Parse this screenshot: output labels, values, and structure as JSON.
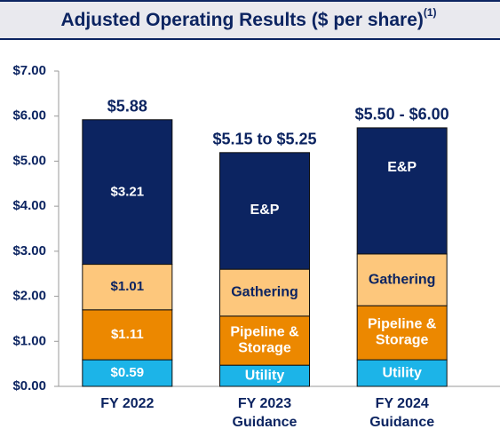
{
  "chart_data": {
    "type": "stacked-bar",
    "title": "Adjusted Operating Results ($ per share)",
    "title_note": "(1)",
    "categories": [
      [
        "FY 2022"
      ],
      [
        "FY 2023",
        "Guidance"
      ],
      [
        "FY 2024",
        "Guidance"
      ]
    ],
    "series": [
      {
        "name": "Utility",
        "color": "#1cb4e8",
        "values": [
          0.59,
          0.47,
          0.59
        ],
        "value_labels": [
          "$0.59",
          null,
          null
        ]
      },
      {
        "name": "Pipeline & Storage",
        "color": "#ec8800",
        "values": [
          1.11,
          1.09,
          1.2
        ],
        "value_labels": [
          "$1.11",
          null,
          null
        ]
      },
      {
        "name": "Gathering",
        "color": "#fdc77c",
        "values": [
          1.01,
          1.04,
          1.15
        ],
        "value_labels": [
          "$1.01",
          null,
          null
        ]
      },
      {
        "name": "E&P",
        "color": "#0c2461",
        "values": [
          3.21,
          2.59,
          2.8
        ],
        "value_labels": [
          "$3.21",
          null,
          null
        ]
      }
    ],
    "total_labels": [
      "$5.88",
      "$5.15 to $5.25",
      "$5.50 - $6.00"
    ],
    "ylim": [
      0,
      7
    ],
    "yticks": [
      {
        "value": 0,
        "label": "$0.00"
      },
      {
        "value": 1,
        "label": "$1.00"
      },
      {
        "value": 2,
        "label": "$2.00"
      },
      {
        "value": 3,
        "label": "$3.00"
      },
      {
        "value": 4,
        "label": "$4.00"
      },
      {
        "value": 5,
        "label": "$5.00"
      },
      {
        "value": 6,
        "label": "$6.00"
      },
      {
        "value": 7,
        "label": "$7.00"
      }
    ],
    "grid": false
  }
}
